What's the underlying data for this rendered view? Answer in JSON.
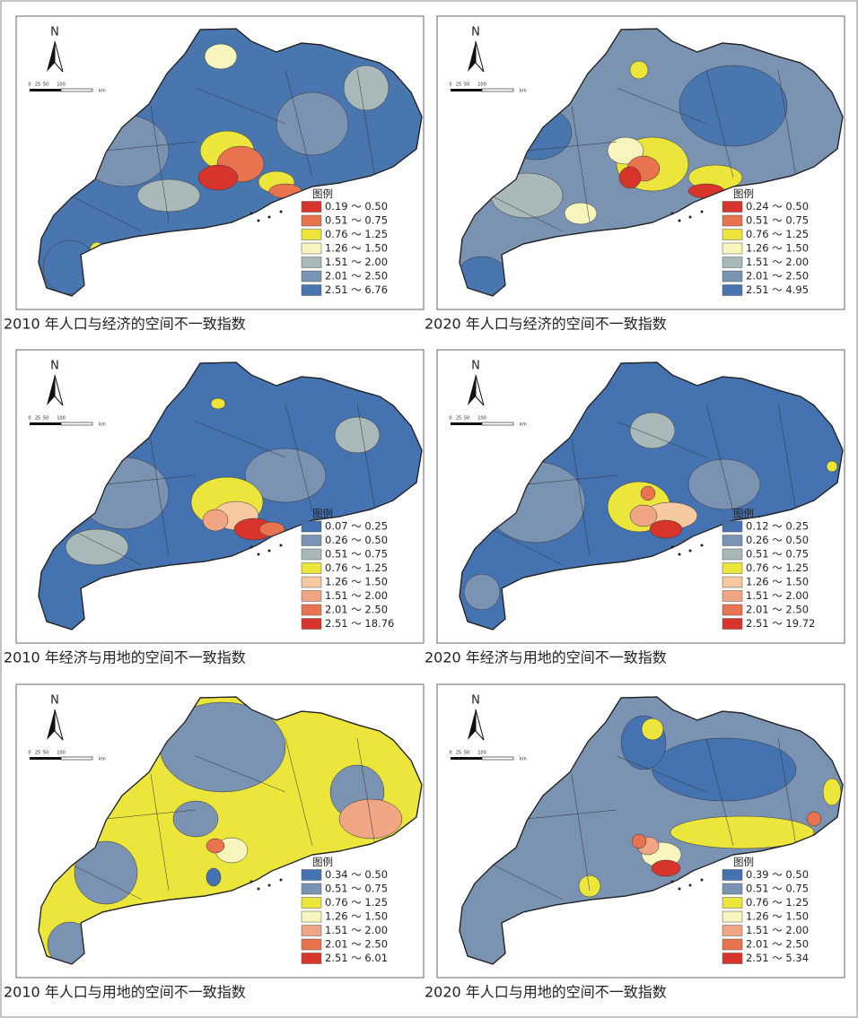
{
  "panels": [
    {
      "north": "N",
      "scale": [
        "0",
        "25",
        "50",
        "100",
        "km"
      ],
      "legend_title": "图例",
      "legend": [
        {
          "label": "0.19 ～ 0.50",
          "color": "#d7352c"
        },
        {
          "label": "0.51 ～ 0.75",
          "color": "#e8734f"
        },
        {
          "label": "0.76 ～ 1.25",
          "color": "#ece63c"
        },
        {
          "label": "1.26 ～ 1.50",
          "color": "#f7f4bd"
        },
        {
          "label": "1.51 ～ 2.00",
          "color": "#a9b8b9"
        },
        {
          "label": "2.01 ～ 2.50",
          "color": "#7b93b3"
        },
        {
          "label": "2.51 ～ 6.76",
          "color": "#4a76b0"
        }
      ],
      "caption": "2010 年人口与经济的空间不一致指数"
    },
    {
      "north": "N",
      "scale": [
        "0",
        "25",
        "50",
        "100",
        "km"
      ],
      "legend_title": "图例",
      "legend": [
        {
          "label": "0.24 ～ 0.50",
          "color": "#d7352c"
        },
        {
          "label": "0.51 ～ 0.75",
          "color": "#e8734f"
        },
        {
          "label": "0.76 ～ 1.25",
          "color": "#ece63c"
        },
        {
          "label": "1.26 ～ 1.50",
          "color": "#f7f4bd"
        },
        {
          "label": "1.51 ～ 2.00",
          "color": "#a9b8b9"
        },
        {
          "label": "2.01 ～ 2.50",
          "color": "#7b93b3"
        },
        {
          "label": "2.51 ～ 4.95",
          "color": "#4a76b0"
        }
      ],
      "caption": "2020 年人口与经济的空间不一致指数"
    },
    {
      "north": "N",
      "scale": [
        "0",
        "25",
        "50",
        "100",
        "km"
      ],
      "legend_title": "图例",
      "legend": [
        {
          "label": "0.07 ～ 0.25",
          "color": "#4572b0"
        },
        {
          "label": "0.26 ～ 0.50",
          "color": "#7b93b3"
        },
        {
          "label": "0.51 ～ 0.75",
          "color": "#a9b8b9"
        },
        {
          "label": "0.76 ～ 1.25",
          "color": "#ece63c"
        },
        {
          "label": "1.26 ～ 1.50",
          "color": "#f6c9a2"
        },
        {
          "label": "1.51 ～ 2.00",
          "color": "#f0a585"
        },
        {
          "label": "2.01 ～ 2.50",
          "color": "#e8734f"
        },
        {
          "label": "2.51 ～ 18.76",
          "color": "#d7352c"
        }
      ],
      "caption": "2010 年经济与用地的空间不一致指数"
    },
    {
      "north": "N",
      "scale": [
        "0",
        "25",
        "50",
        "100",
        "km"
      ],
      "legend_title": "图例",
      "legend": [
        {
          "label": "0.12 ～ 0.25",
          "color": "#4572b0"
        },
        {
          "label": "0.26 ～ 0.50",
          "color": "#7b93b3"
        },
        {
          "label": "0.51 ～ 0.75",
          "color": "#a9b8b9"
        },
        {
          "label": "0.76 ～ 1.25",
          "color": "#ece63c"
        },
        {
          "label": "1.26 ～ 1.50",
          "color": "#f6c9a2"
        },
        {
          "label": "1.51 ～ 2.00",
          "color": "#f0a585"
        },
        {
          "label": "2.01 ～ 2.50",
          "color": "#e8734f"
        },
        {
          "label": "2.51 ～ 19.72",
          "color": "#d7352c"
        }
      ],
      "caption": "2020 年经济与用地的空间不一致指数"
    },
    {
      "north": "N",
      "scale": [
        "0",
        "25",
        "50",
        "100",
        "km"
      ],
      "legend_title": "图例",
      "legend": [
        {
          "label": "0.34 ～ 0.50",
          "color": "#4572b0"
        },
        {
          "label": "0.51 ～ 0.75",
          "color": "#7b93b3"
        },
        {
          "label": "0.76 ～ 1.25",
          "color": "#ece63c"
        },
        {
          "label": "1.26 ～ 1.50",
          "color": "#f7f4bd"
        },
        {
          "label": "1.51 ～ 2.00",
          "color": "#f0a585"
        },
        {
          "label": "2.01 ～ 2.50",
          "color": "#e8734f"
        },
        {
          "label": "2.51 ～ 6.01",
          "color": "#d7352c"
        }
      ],
      "caption": "2010 年人口与用地的空间不一致指数"
    },
    {
      "north": "N",
      "scale": [
        "0",
        "25",
        "50",
        "100",
        "km"
      ],
      "legend_title": "图例",
      "legend": [
        {
          "label": "0.39 ～ 0.50",
          "color": "#4572b0"
        },
        {
          "label": "0.51 ～ 0.75",
          "color": "#7b93b3"
        },
        {
          "label": "0.76 ～ 1.25",
          "color": "#ece63c"
        },
        {
          "label": "1.26 ～ 1.50",
          "color": "#f7f4bd"
        },
        {
          "label": "1.51 ～ 2.00",
          "color": "#f0a585"
        },
        {
          "label": "2.01 ～ 2.50",
          "color": "#e8734f"
        },
        {
          "label": "2.51 ～ 5.34",
          "color": "#d7352c"
        }
      ],
      "caption": "2020 年人口与用地的空间不一致指数"
    }
  ]
}
